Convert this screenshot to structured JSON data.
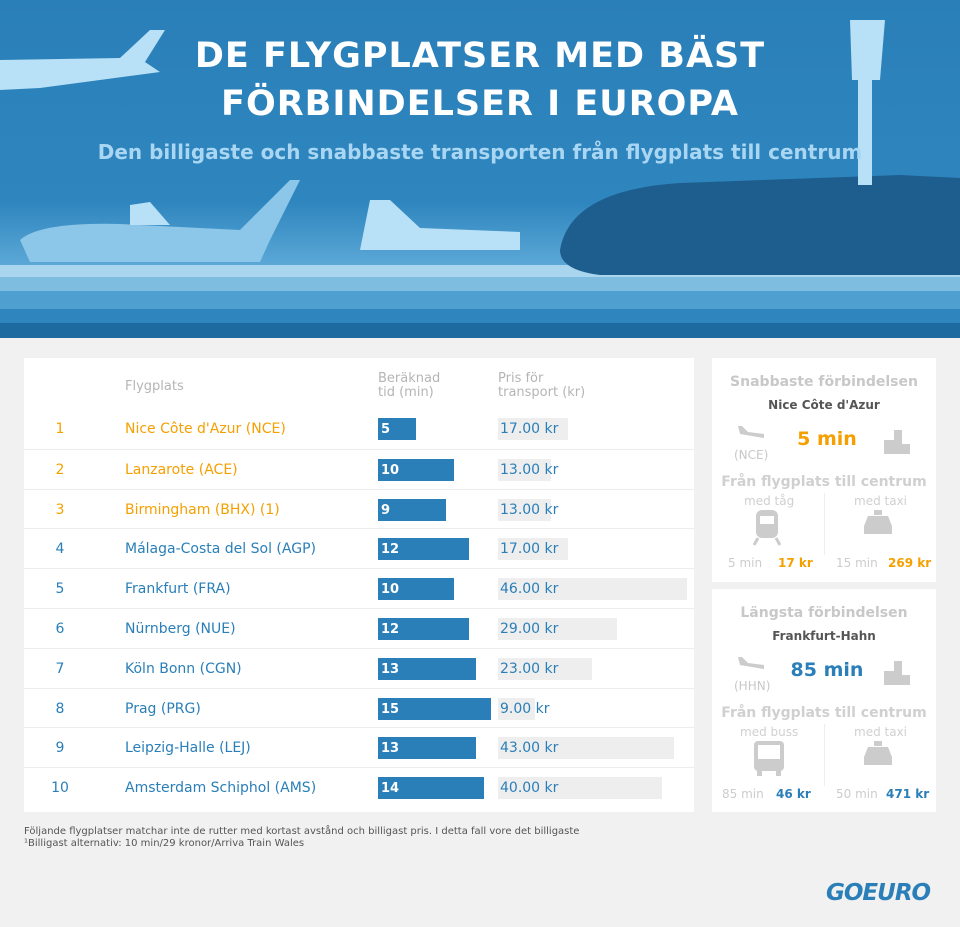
{
  "header": {
    "title_line1": "DE FLYGPLATSER MED BÄST",
    "title_line2": "FÖRBINDELSER I EUROPA",
    "subtitle": "Den billigaste och snabbaste transporten från flygplats till centrum"
  },
  "table": {
    "col_airport": "Flygplats",
    "col_time": "Beräknad tid (min)",
    "col_price": "Pris för transport (kr)",
    "rows": [
      {
        "rank": "1",
        "name": "Nice Côte d'Azur (NCE)",
        "time": 5,
        "price": "17.00 kr",
        "highlight": true
      },
      {
        "rank": "2",
        "name": "Lanzarote (ACE)",
        "time": 10,
        "price": "13.00 kr",
        "highlight": true
      },
      {
        "rank": "3",
        "name": "Birmingham (BHX) (1)",
        "time": 9,
        "price": "13.00 kr",
        "highlight": true
      },
      {
        "rank": "4",
        "name": "Málaga-Costa del Sol (AGP)",
        "time": 12,
        "price": "17.00 kr",
        "highlight": false
      },
      {
        "rank": "5",
        "name": "Frankfurt (FRA)",
        "time": 10,
        "price": "46.00 kr",
        "highlight": false
      },
      {
        "rank": "6",
        "name": "Nürnberg (NUE)",
        "time": 12,
        "price": "29.00 kr",
        "highlight": false
      },
      {
        "rank": "7",
        "name": "Köln Bonn (CGN)",
        "time": 13,
        "price": "23.00 kr",
        "highlight": false
      },
      {
        "rank": "8",
        "name": "Prag (PRG)",
        "time": 15,
        "price": "9.00 kr",
        "highlight": false
      },
      {
        "rank": "9",
        "name": "Leipzig-Halle (LEJ)",
        "time": 13,
        "price": "43.00 kr",
        "highlight": false
      },
      {
        "rank": "10",
        "name": "Amsterdam Schiphol (AMS)",
        "time": 14,
        "price": "40.00 kr",
        "highlight": false
      }
    ]
  },
  "chart_data": {
    "type": "bar",
    "categories": [
      "Nice Côte d'Azur (NCE)",
      "Lanzarote (ACE)",
      "Birmingham (BHX) (1)",
      "Málaga-Costa del Sol (AGP)",
      "Frankfurt (FRA)",
      "Nürnberg (NUE)",
      "Köln Bonn (CGN)",
      "Prag (PRG)",
      "Leipzig-Halle (LEJ)",
      "Amsterdam Schiphol (AMS)"
    ],
    "series": [
      {
        "name": "Beräknad tid (min)",
        "values": [
          5,
          10,
          9,
          12,
          10,
          12,
          13,
          15,
          13,
          14
        ]
      },
      {
        "name": "Pris för transport (kr)",
        "values": [
          17,
          13,
          13,
          17,
          46,
          29,
          23,
          9,
          43,
          40
        ]
      }
    ]
  },
  "fastest": {
    "heading": "Snabbaste förbindelsen",
    "airport": "Nice Côte d'Azur",
    "code": "(NCE)",
    "duration": "5 min",
    "sub": "Från flygplats till centrum",
    "left": {
      "mode": "med tåg",
      "time": "5 min",
      "price": "17 kr"
    },
    "right": {
      "mode": "med taxi",
      "time": "15 min",
      "price": "269 kr"
    }
  },
  "longest": {
    "heading": "Längsta förbindelsen",
    "airport": "Frankfurt-Hahn",
    "code": "(HHN)",
    "duration": "85 min",
    "sub": "Från flygplats till centrum",
    "left": {
      "mode": "med buss",
      "time": "85 min",
      "price": "46 kr"
    },
    "right": {
      "mode": "med taxi",
      "time": "50 min",
      "price": "471 kr"
    }
  },
  "footnote": {
    "line1": "Följande flygplatser matchar inte de rutter med kortast avstånd och billigast pris. I detta fall vore det billigaste",
    "line2": "¹Billigast alternativ: 10 min/29 kronor/Arriva Train Wales"
  },
  "logo": "GOEURO",
  "colors": {
    "orange": "#f5a000",
    "blue": "#2a7fb8",
    "header": "#2a7fb8"
  }
}
